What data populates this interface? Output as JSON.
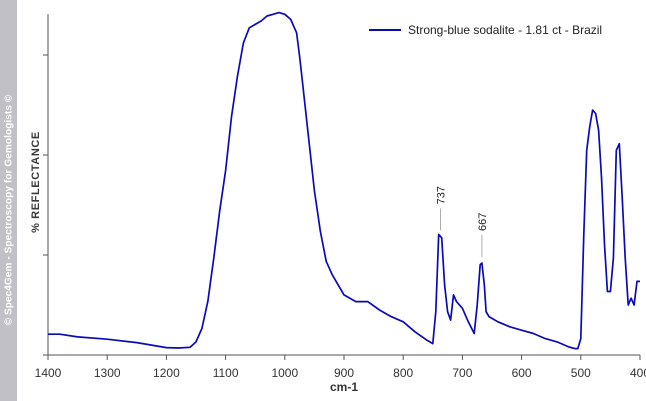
{
  "chart_data": {
    "type": "line",
    "xlabel": "cm-1",
    "ylabel": "% REFLECTANCE",
    "xlim": [
      1400,
      400
    ],
    "x_reversed": true,
    "x_ticks": [
      1400,
      1300,
      1200,
      1100,
      1000,
      900,
      800,
      700,
      600,
      500,
      400
    ],
    "y_ticks_labeled": false,
    "ylim": [
      0,
      100
    ],
    "grid": false,
    "legend_position": "top-right",
    "series": [
      {
        "name": "Strong-blue sodalite - 1.81 ct - Brazil",
        "color": "#0a0ab8",
        "x": [
          1400,
          1380,
          1350,
          1300,
          1250,
          1200,
          1180,
          1160,
          1150,
          1140,
          1130,
          1120,
          1110,
          1100,
          1090,
          1080,
          1070,
          1060,
          1050,
          1040,
          1030,
          1020,
          1010,
          1000,
          990,
          980,
          975,
          970,
          960,
          950,
          940,
          930,
          920,
          910,
          900,
          880,
          860,
          840,
          820,
          800,
          780,
          760,
          750,
          745,
          740,
          735,
          730,
          725,
          720,
          715,
          710,
          700,
          690,
          680,
          675,
          670,
          667,
          663,
          660,
          655,
          650,
          640,
          620,
          600,
          580,
          560,
          540,
          520,
          510,
          505,
          500,
          495,
          490,
          485,
          480,
          475,
          470,
          465,
          460,
          455,
          450,
          445,
          440,
          435,
          430,
          425,
          420,
          415,
          410,
          405,
          400
        ],
        "y": [
          5.3,
          5.3,
          4.5,
          3.8,
          2.8,
          1.3,
          1.2,
          1.4,
          3,
          7,
          15,
          28,
          42,
          54,
          70,
          82,
          92,
          96.5,
          97.5,
          98.5,
          100,
          100.5,
          101,
          100.5,
          99,
          95,
          88,
          80,
          64,
          48,
          36,
          27,
          23,
          20,
          17,
          15,
          15,
          12.5,
          10.5,
          9,
          6,
          3.5,
          2.5,
          12,
          35,
          34,
          20,
          12,
          9.5,
          17,
          15,
          13,
          9,
          5.5,
          14,
          26,
          26.5,
          20,
          12,
          10.5,
          10,
          9,
          7.5,
          6.5,
          5.5,
          4,
          3,
          1.5,
          1,
          1,
          4,
          35,
          60,
          67,
          72,
          71,
          66,
          52,
          32,
          18,
          18,
          28,
          60,
          62,
          46,
          28,
          14,
          16,
          14,
          21,
          21
        ]
      }
    ],
    "annotations": [
      {
        "label": "737",
        "x": 737
      },
      {
        "label": "667",
        "x": 667
      }
    ]
  },
  "watermark": "© Spec4Gem - Spectroscopy for Gemologists ©"
}
